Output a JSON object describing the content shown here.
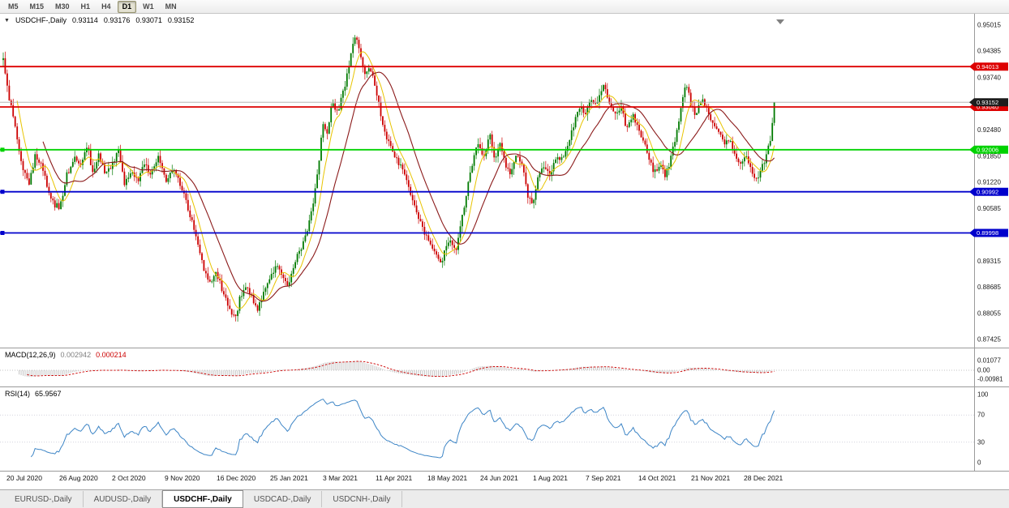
{
  "icons": {
    "symbol_dropdown": "▼"
  },
  "colors": {
    "up_candle": "#007a00",
    "down_candle": "#cc0000",
    "ma_fast": "#e8c400",
    "ma_slow": "#8b1a1a",
    "macd_signal": "#cc0000",
    "macd_histogram": "#c4c4c4",
    "rsi_line": "#3d85c6",
    "current_price_tag": "#1c1c1c"
  },
  "toolbar": {
    "timeframes": [
      "M5",
      "M15",
      "M30",
      "H1",
      "H4",
      "D1",
      "W1",
      "MN"
    ],
    "active_timeframe": "D1"
  },
  "header": {
    "symbol": "USDCHF-,Daily",
    "open": "0.93114",
    "high": "0.93176",
    "low": "0.93071",
    "close": "0.93152"
  },
  "price_axis_ticks": [
    "0.95015",
    "0.94385",
    "0.93740",
    "0.92480",
    "0.91850",
    "0.91220",
    "0.90585",
    "0.89315",
    "0.88685",
    "0.88055",
    "0.87425"
  ],
  "levels": [
    {
      "price": 0.94013,
      "label": "0.94013",
      "color": "#dd0000",
      "edge_marker": false
    },
    {
      "price": 0.9304,
      "label": "0.93040",
      "color": "#dd0000",
      "edge_marker": false
    },
    {
      "price": 0.92006,
      "label": "0.92006",
      "color": "#00d200",
      "edge_marker": true
    },
    {
      "price": 0.90992,
      "label": "0.90992",
      "color": "#0000cc",
      "edge_marker": true
    },
    {
      "price": 0.89998,
      "label": "0.89998",
      "color": "#0000cc",
      "edge_marker": true
    }
  ],
  "current_price": {
    "value": 0.93152,
    "label": "0.93152"
  },
  "macd_panel": {
    "title": "MACD(12,26,9)",
    "main_value": "0.002942",
    "signal_value": "0.000214",
    "axis_labels": [
      "0.01077",
      "0.00",
      "-0.00981"
    ],
    "axis_values": [
      0.01077,
      0,
      -0.00981
    ]
  },
  "rsi_panel": {
    "title": "RSI(14)",
    "value": "65.9567",
    "axis_labels": [
      "100",
      "70",
      "30",
      "0"
    ],
    "axis_values": [
      100,
      70,
      30,
      0
    ],
    "level_lines": [
      70,
      30
    ]
  },
  "date_axis": [
    "20 Jul 2020",
    "26 Aug 2020",
    "2 Oct 2020",
    "9 Nov 2020",
    "16 Dec 2020",
    "25 Jan 2021",
    "3 Mar 2021",
    "11 Apr 2021",
    "18 May 2021",
    "24 Jun 2021",
    "1 Aug 2021",
    "7 Sep 2021",
    "14 Oct 2021",
    "21 Nov 2021",
    "28 Dec 2021"
  ],
  "tabs": [
    "EURUSD-,Daily",
    "AUDUSD-,Daily",
    "USDCHF-,Daily",
    "USDCAD-,Daily",
    "USDCNH-,Daily"
  ],
  "active_tab": "USDCHF-,Daily",
  "chart_data": {
    "type": "candlestick",
    "symbol": "USDCHF",
    "timeframe": "Daily",
    "title": "USDCHF-,Daily",
    "ohlc_current": {
      "open": 0.93114,
      "high": 0.93176,
      "low": 0.93071,
      "close": 0.93152
    },
    "y_range": [
      0.8725,
      0.9513
    ],
    "x_range_dates": [
      "20 Jul 2020",
      "Jan 2022"
    ],
    "horizontal_levels": [
      0.94013,
      0.9304,
      0.92006,
      0.90992,
      0.89998
    ],
    "indicators": [
      {
        "name": "MACD",
        "params": [
          12,
          26,
          9
        ],
        "current": [
          0.002942,
          0.000214
        ]
      },
      {
        "name": "RSI",
        "params": [
          14
        ],
        "current": 65.9567
      },
      {
        "name": "MA-fast",
        "type": "sma",
        "period": 8
      },
      {
        "name": "MA-slow",
        "type": "sma",
        "period": 21
      }
    ],
    "price_path_anchors": [
      [
        2,
        0.9445
      ],
      [
        8,
        0.936
      ],
      [
        14,
        0.93
      ],
      [
        20,
        0.924
      ],
      [
        28,
        0.916
      ],
      [
        36,
        0.912
      ],
      [
        44,
        0.919
      ],
      [
        52,
        0.916
      ],
      [
        58,
        0.911
      ],
      [
        66,
        0.907
      ],
      [
        74,
        0.906
      ],
      [
        82,
        0.914
      ],
      [
        92,
        0.918
      ],
      [
        100,
        0.916
      ],
      [
        108,
        0.9215
      ],
      [
        114,
        0.914
      ],
      [
        122,
        0.919
      ],
      [
        130,
        0.9145
      ],
      [
        138,
        0.9165
      ],
      [
        146,
        0.9195
      ],
      [
        154,
        0.9115
      ],
      [
        162,
        0.9155
      ],
      [
        170,
        0.9125
      ],
      [
        178,
        0.9165
      ],
      [
        186,
        0.914
      ],
      [
        196,
        0.9185
      ],
      [
        204,
        0.9125
      ],
      [
        212,
        0.9155
      ],
      [
        220,
        0.9125
      ],
      [
        228,
        0.9085
      ],
      [
        236,
        0.903
      ],
      [
        244,
        0.8975
      ],
      [
        252,
        0.891
      ],
      [
        258,
        0.8875
      ],
      [
        266,
        0.891
      ],
      [
        274,
        0.886
      ],
      [
        282,
        0.8825
      ],
      [
        290,
        0.879
      ],
      [
        296,
        0.8845
      ],
      [
        304,
        0.8875
      ],
      [
        310,
        0.8845
      ],
      [
        318,
        0.8815
      ],
      [
        326,
        0.8865
      ],
      [
        334,
        0.8895
      ],
      [
        342,
        0.8925
      ],
      [
        348,
        0.889
      ],
      [
        356,
        0.8875
      ],
      [
        364,
        0.8935
      ],
      [
        372,
        0.8965
      ],
      [
        380,
        0.901
      ],
      [
        386,
        0.9075
      ],
      [
        392,
        0.915
      ],
      [
        398,
        0.927
      ],
      [
        404,
        0.924
      ],
      [
        410,
        0.932
      ],
      [
        416,
        0.929
      ],
      [
        424,
        0.9345
      ],
      [
        432,
        0.942
      ],
      [
        438,
        0.948
      ],
      [
        444,
        0.943
      ],
      [
        450,
        0.938
      ],
      [
        456,
        0.9405
      ],
      [
        464,
        0.934
      ],
      [
        470,
        0.928
      ],
      [
        476,
        0.9235
      ],
      [
        484,
        0.92
      ],
      [
        492,
        0.9165
      ],
      [
        500,
        0.914
      ],
      [
        508,
        0.9085
      ],
      [
        516,
        0.904
      ],
      [
        524,
        0.8995
      ],
      [
        530,
        0.8975
      ],
      [
        538,
        0.8945
      ],
      [
        544,
        0.893
      ],
      [
        550,
        0.8965
      ],
      [
        556,
        0.8985
      ],
      [
        562,
        0.895
      ],
      [
        568,
        0.902
      ],
      [
        576,
        0.9105
      ],
      [
        584,
        0.9185
      ],
      [
        590,
        0.922
      ],
      [
        596,
        0.918
      ],
      [
        604,
        0.9235
      ],
      [
        610,
        0.918
      ],
      [
        616,
        0.922
      ],
      [
        624,
        0.916
      ],
      [
        630,
        0.914
      ],
      [
        636,
        0.9185
      ],
      [
        644,
        0.9165
      ],
      [
        650,
        0.9095
      ],
      [
        656,
        0.9065
      ],
      [
        662,
        0.9125
      ],
      [
        670,
        0.916
      ],
      [
        678,
        0.9145
      ],
      [
        686,
        0.9175
      ],
      [
        694,
        0.9185
      ],
      [
        702,
        0.9225
      ],
      [
        710,
        0.928
      ],
      [
        716,
        0.931
      ],
      [
        722,
        0.9285
      ],
      [
        728,
        0.933
      ],
      [
        736,
        0.9305
      ],
      [
        744,
        0.936
      ],
      [
        750,
        0.931
      ],
      [
        758,
        0.9285
      ],
      [
        766,
        0.9305
      ],
      [
        772,
        0.9255
      ],
      [
        780,
        0.9285
      ],
      [
        786,
        0.926
      ],
      [
        792,
        0.9225
      ],
      [
        800,
        0.9185
      ],
      [
        806,
        0.9145
      ],
      [
        814,
        0.9165
      ],
      [
        820,
        0.9135
      ],
      [
        828,
        0.9185
      ],
      [
        834,
        0.9245
      ],
      [
        840,
        0.9305
      ],
      [
        846,
        0.9365
      ],
      [
        852,
        0.9305
      ],
      [
        858,
        0.9285
      ],
      [
        866,
        0.9325
      ],
      [
        872,
        0.93
      ],
      [
        878,
        0.9265
      ],
      [
        886,
        0.9245
      ],
      [
        892,
        0.9215
      ],
      [
        900,
        0.9225
      ],
      [
        906,
        0.9185
      ],
      [
        914,
        0.9165
      ],
      [
        920,
        0.9185
      ],
      [
        926,
        0.9155
      ],
      [
        932,
        0.913
      ],
      [
        938,
        0.915
      ],
      [
        944,
        0.918
      ],
      [
        950,
        0.923
      ],
      [
        955,
        0.9315
      ]
    ]
  }
}
